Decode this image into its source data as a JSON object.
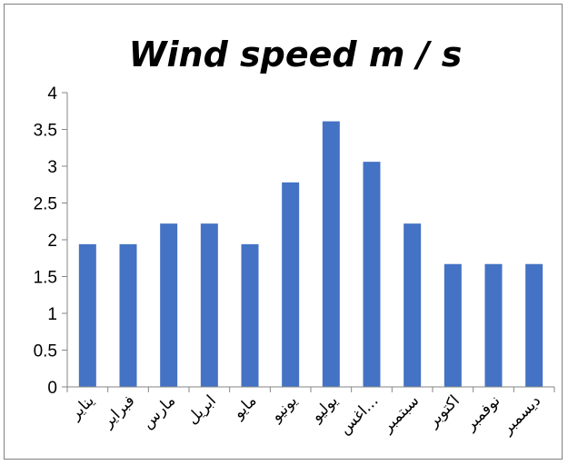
{
  "chart_data": {
    "type": "bar",
    "title": "Wind speed  m / s",
    "xlabel": "",
    "ylabel": "",
    "ylim": [
      0,
      4
    ],
    "yticks": [
      "0",
      "0.5",
      "1",
      "1.5",
      "2",
      "2.5",
      "3",
      "3.5",
      "4"
    ],
    "grid": false,
    "legend": "none",
    "categories": [
      "يناير",
      "فبراير",
      "مارس",
      "ابريل",
      "مايو",
      "يونيو",
      "يوليو",
      "اغس…",
      "سبتمبر",
      "اكتوبر",
      "نوفمبر",
      "ديسمبر"
    ],
    "values": [
      1.94,
      1.94,
      2.22,
      2.22,
      1.94,
      2.78,
      3.61,
      3.06,
      2.22,
      1.67,
      1.67,
      1.67
    ],
    "bar_color": "#4472c4"
  }
}
